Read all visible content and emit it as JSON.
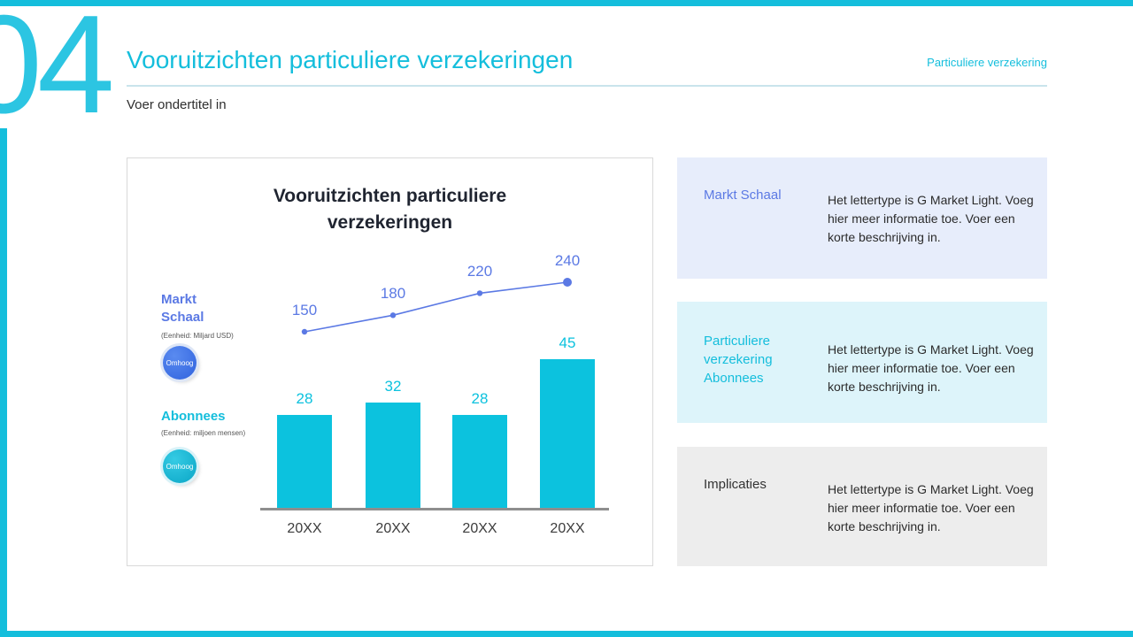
{
  "accent": {
    "cyan": "#14BEDC",
    "cyan_light": "#2CC5E2",
    "indigo": "#5B79E4"
  },
  "slide": {
    "number": "04",
    "title": "Vooruitzichten particuliere verzekeringen",
    "tag": "Particuliere verzekering",
    "subtitle": "Voer ondertitel in"
  },
  "chart_card": {
    "legend": [
      {
        "name": "Markt Schaal",
        "unit": "(Eenheid: Miljard USD)",
        "button": "Omhoog",
        "color": "#5B79E4"
      },
      {
        "name": "Abonnees",
        "unit": "(Eenheid: miljoen mensen)",
        "button": "Omhoog",
        "color": "#14BEDC"
      }
    ]
  },
  "chart_data": {
    "type": "combo",
    "title": "Vooruitzichten particuliere verzekeringen",
    "categories": [
      "20XX",
      "20XX",
      "20XX",
      "20XX"
    ],
    "series": [
      {
        "name": "Markt Schaal",
        "type": "line",
        "unit": "Miljard USD",
        "color": "#5B79E4",
        "values": [
          150,
          180,
          220,
          240
        ]
      },
      {
        "name": "Abonnees",
        "type": "bar",
        "unit": "miljoen mensen",
        "color": "#0CC2DE",
        "values": [
          28,
          32,
          28,
          45
        ]
      }
    ],
    "legend_position": "left",
    "grid": false
  },
  "info_boxes": [
    {
      "label": "Markt Schaal",
      "text": "Het lettertype is G Market Light. Voeg hier meer informatie toe. Voer een korte beschrijving in.",
      "bg": "#E7EDFB",
      "label_color": "#5B79E4"
    },
    {
      "label": "Particuliere verzekering Abonnees",
      "text": "Het lettertype is G Market Light. Voeg hier meer informatie toe. Voer een korte beschrijving in.",
      "bg": "#DDF4FA",
      "label_color": "#14BEDC"
    },
    {
      "label": "Implicaties",
      "text": "Het lettertype is G Market Light. Voeg hier meer informatie toe. Voer een korte beschrijving in.",
      "bg": "#EDEDED",
      "label_color": "#333333"
    }
  ]
}
